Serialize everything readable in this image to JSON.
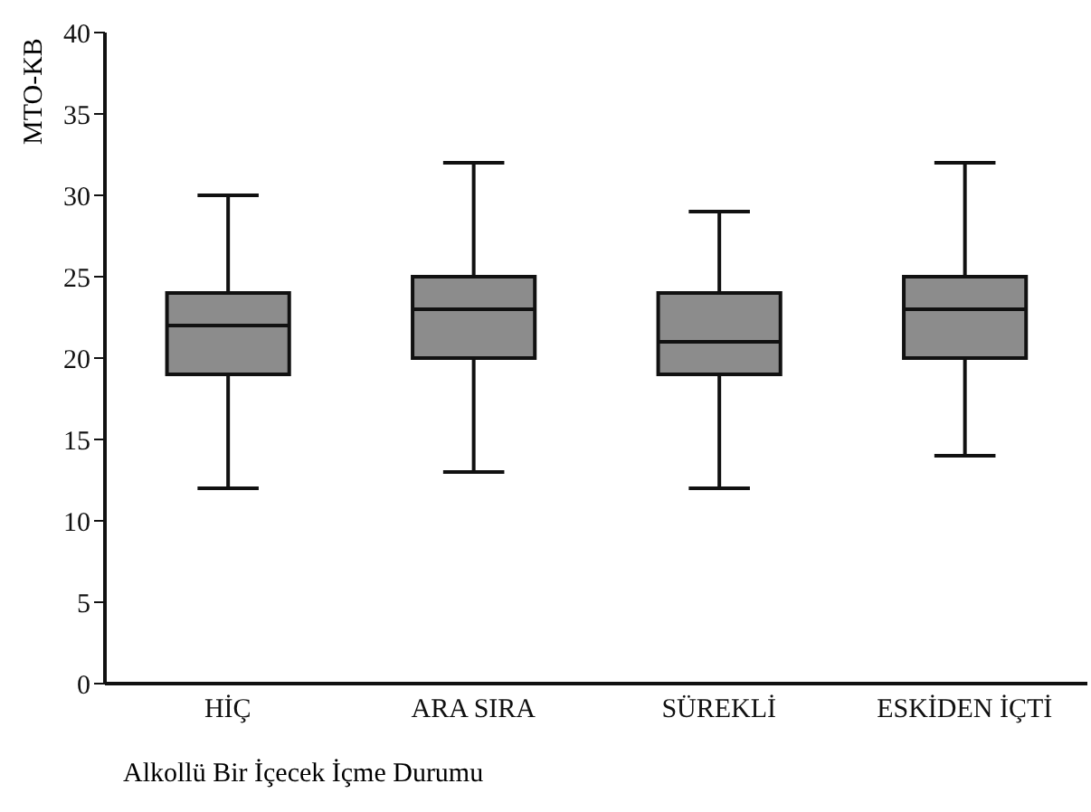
{
  "chart_data": {
    "type": "box",
    "xlabel": "Alkollü Bir İçecek İçme Durumu",
    "ylabel": "MTO-KB",
    "categories": [
      "HİÇ",
      "ARA SIRA",
      "SÜREKLİ",
      "ESKİDEN İÇTİ"
    ],
    "boxes": [
      {
        "low": 12,
        "q1": 19,
        "median": 22,
        "q3": 24,
        "high": 30
      },
      {
        "low": 13,
        "q1": 20,
        "median": 23,
        "q3": 25,
        "high": 32
      },
      {
        "low": 12,
        "q1": 19,
        "median": 21,
        "q3": 24,
        "high": 29
      },
      {
        "low": 14,
        "q1": 20,
        "median": 23,
        "q3": 25,
        "high": 32
      }
    ],
    "color": "#8c8c8c",
    "ylim": [
      0,
      40
    ],
    "yticks": [
      0,
      5,
      10,
      15,
      20,
      25,
      30,
      35,
      40
    ],
    "grid": false
  }
}
